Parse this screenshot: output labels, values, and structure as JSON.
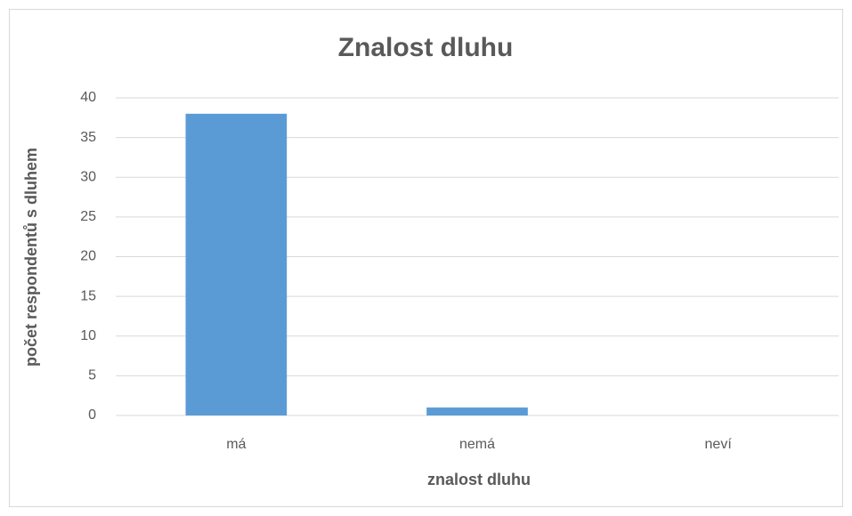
{
  "chart_data": {
    "type": "bar",
    "title": "Znalost dluhu",
    "x_label": "znalost dluhu",
    "y_label": "počet respondentů s dluhem",
    "categories": [
      "má",
      "nemá",
      "neví"
    ],
    "values": [
      38,
      1,
      0
    ],
    "color": "#5b9bd5",
    "ylim": [
      0,
      40
    ],
    "yticks": [
      0,
      5,
      10,
      15,
      20,
      25,
      30,
      35,
      40
    ],
    "grid": true
  }
}
